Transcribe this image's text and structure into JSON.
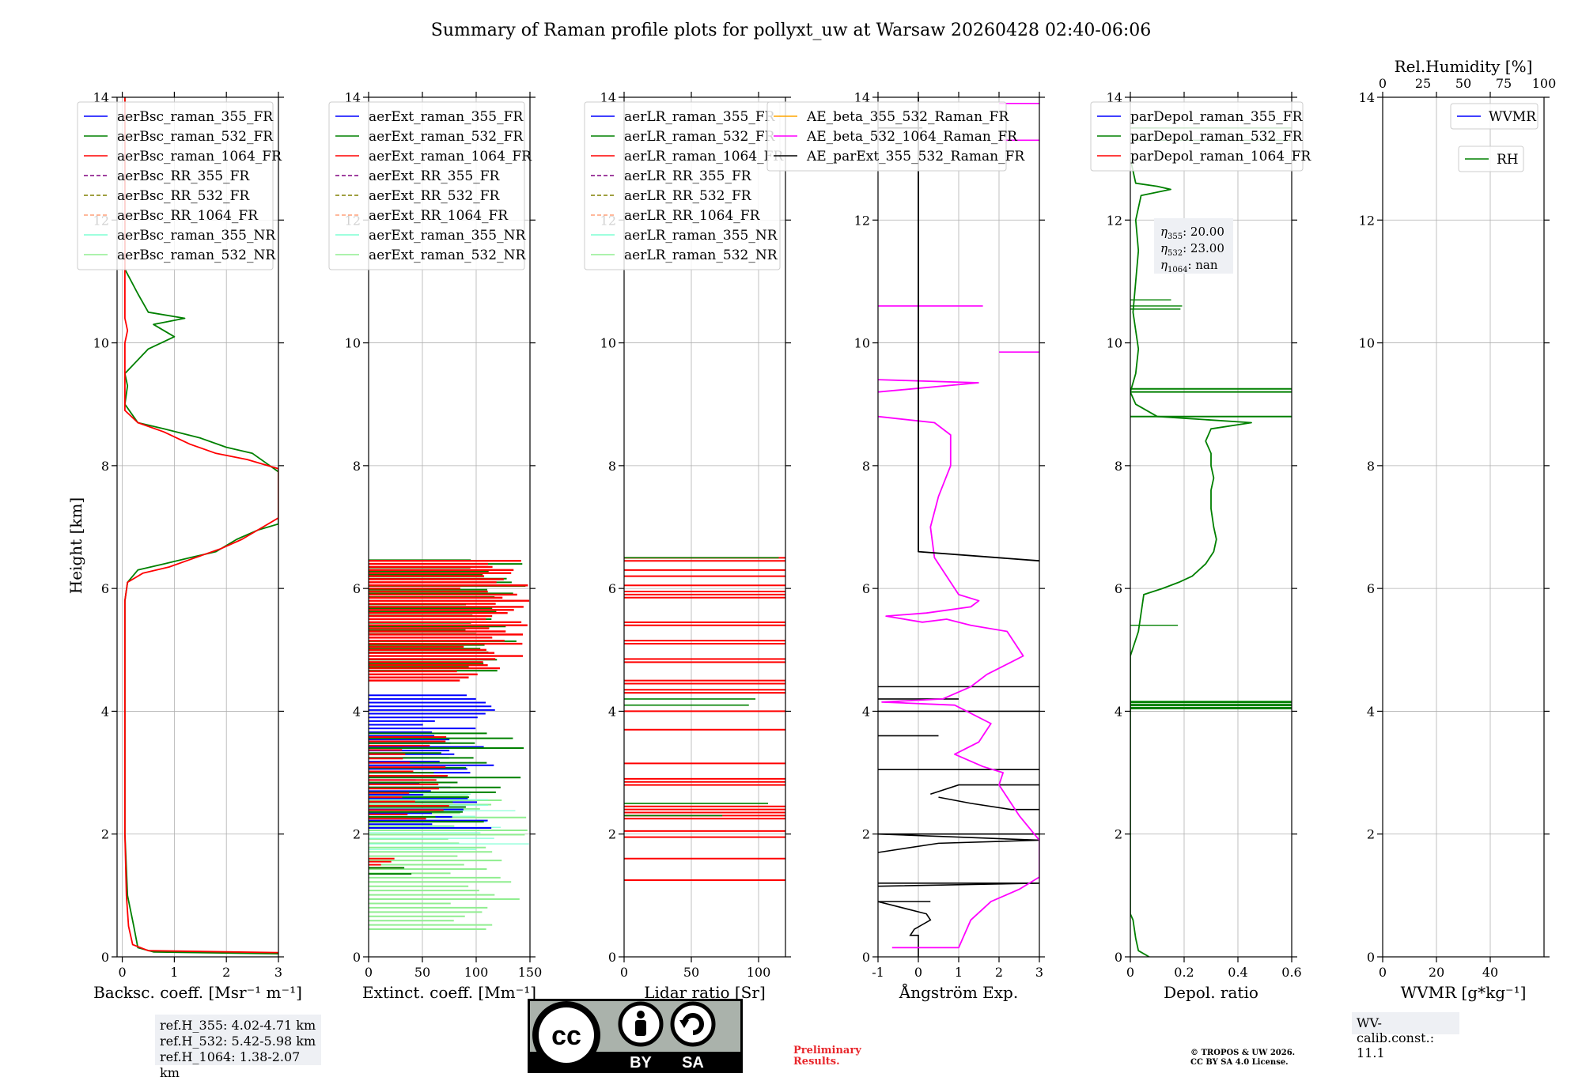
{
  "title": "Summary of Raman profile plots for pollyxt_uw at Warsaw 20260428 02:40-06:06",
  "y_axis_label": "Height [km]",
  "colors": {
    "blue": "#0000ff",
    "green": "#008000",
    "red": "#ff0000",
    "purple": "#800080",
    "olive": "#808000",
    "salmon": "#ffa07a",
    "cyan": "#7fffd4",
    "lightgreen": "#90ee90",
    "orange": "#ffa500",
    "magenta": "#ff00ff",
    "black": "#000000",
    "grid": "#b0b0b0"
  },
  "chart_data": [
    {
      "type": "line",
      "id": "backscatter",
      "xlabel": "Backsc. coeff. [Msr⁻¹ m⁻¹]",
      "xlim": [
        -0.1,
        3
      ],
      "ylim": [
        0,
        14
      ],
      "xticks": [
        0,
        1,
        2,
        3
      ],
      "yticks": [
        0,
        2,
        4,
        6,
        8,
        10,
        12,
        14
      ],
      "legend": [
        "aerBsc_raman_355_FR",
        "aerBsc_raman_532_FR",
        "aerBsc_raman_1064_FR",
        "aerBsc_RR_355_FR",
        "aerBsc_RR_532_FR",
        "aerBsc_RR_1064_FR",
        "aerBsc_raman_355_NR",
        "aerBsc_raman_532_NR"
      ],
      "legend_position": "top-right",
      "series": [
        {
          "name": "aerBsc_raman_532_FR",
          "color": "green",
          "points": [
            [
              3.0,
              0.05
            ],
            [
              0.6,
              0.08
            ],
            [
              0.3,
              0.15
            ],
            [
              0.22,
              0.5
            ],
            [
              0.1,
              1.0
            ],
            [
              0.05,
              2.0
            ],
            [
              0.05,
              3.5
            ],
            [
              0.05,
              5.0
            ],
            [
              0.05,
              5.8
            ],
            [
              0.1,
              6.1
            ],
            [
              0.3,
              6.3
            ],
            [
              0.8,
              6.4
            ],
            [
              1.3,
              6.5
            ],
            [
              1.8,
              6.6
            ],
            [
              2.2,
              6.8
            ],
            [
              2.6,
              6.95
            ],
            [
              3.0,
              7.05
            ],
            [
              3.0,
              7.9
            ],
            [
              2.5,
              8.2
            ],
            [
              2.0,
              8.3
            ],
            [
              1.5,
              8.45
            ],
            [
              0.8,
              8.6
            ],
            [
              0.3,
              8.7
            ],
            [
              0.05,
              9.0
            ],
            [
              0.1,
              9.3
            ],
            [
              0.05,
              9.5
            ],
            [
              0.5,
              9.9
            ],
            [
              1.0,
              10.1
            ],
            [
              0.6,
              10.3
            ],
            [
              1.2,
              10.4
            ],
            [
              0.5,
              10.5
            ],
            [
              0.3,
              10.8
            ],
            [
              0.05,
              11.2
            ],
            [
              0.05,
              14.0
            ]
          ]
        },
        {
          "name": "aerBsc_raman_1064_FR",
          "color": "red",
          "points": [
            [
              3.0,
              0.07
            ],
            [
              0.5,
              0.1
            ],
            [
              0.2,
              0.2
            ],
            [
              0.12,
              0.5
            ],
            [
              0.08,
              1.0
            ],
            [
              0.05,
              2.0
            ],
            [
              0.05,
              3.5
            ],
            [
              0.05,
              5.0
            ],
            [
              0.05,
              5.8
            ],
            [
              0.1,
              6.1
            ],
            [
              0.4,
              6.25
            ],
            [
              0.9,
              6.35
            ],
            [
              1.4,
              6.5
            ],
            [
              1.9,
              6.65
            ],
            [
              2.3,
              6.8
            ],
            [
              2.7,
              7.0
            ],
            [
              3.0,
              7.15
            ],
            [
              3.0,
              7.95
            ],
            [
              2.4,
              8.1
            ],
            [
              1.8,
              8.2
            ],
            [
              1.3,
              8.35
            ],
            [
              0.8,
              8.55
            ],
            [
              0.3,
              8.7
            ],
            [
              0.05,
              8.9
            ],
            [
              0.05,
              10.0
            ],
            [
              0.1,
              10.2
            ],
            [
              0.05,
              10.4
            ],
            [
              0.05,
              14.0
            ]
          ]
        }
      ]
    },
    {
      "type": "line",
      "id": "extinction",
      "xlabel": "Extinct. coeff. [Mm⁻¹]",
      "xlim": [
        0,
        150
      ],
      "ylim": [
        0,
        14
      ],
      "xticks": [
        0,
        50,
        100,
        150
      ],
      "yticks": [
        0,
        2,
        4,
        6,
        8,
        10,
        12,
        14
      ],
      "legend": [
        "aerExt_raman_355_FR",
        "aerExt_raman_532_FR",
        "aerExt_raman_1064_FR",
        "aerExt_RR_355_FR",
        "aerExt_RR_532_FR",
        "aerExt_RR_1064_FR",
        "aerExt_raman_355_NR",
        "aerExt_raman_532_NR"
      ],
      "legend_position": "top-right"
    },
    {
      "type": "line",
      "id": "lidar_ratio",
      "xlabel": "Lidar ratio [Sr]",
      "xlim": [
        0,
        120
      ],
      "ylim": [
        0,
        14
      ],
      "xticks": [
        0,
        50,
        100
      ],
      "yticks": [
        0,
        2,
        4,
        6,
        8,
        10,
        12,
        14
      ],
      "legend": [
        "aerLR_raman_355_FR",
        "aerLR_raman_532_FR",
        "aerLR_raman_1064_FR",
        "aerLR_RR_355_FR",
        "aerLR_RR_532_FR",
        "aerLR_RR_1064_FR",
        "aerLR_raman_355_NR",
        "aerLR_raman_532_NR"
      ],
      "legend_position": "top-right"
    },
    {
      "type": "line",
      "id": "angstrom",
      "xlabel": "Ångström Exp.",
      "xlim": [
        -1,
        3
      ],
      "ylim": [
        0,
        14
      ],
      "xticks": [
        -1,
        0,
        1,
        2,
        3
      ],
      "yticks": [
        0,
        2,
        4,
        6,
        8,
        10,
        12,
        14
      ],
      "legend": [
        "AE_beta_355_532_Raman_FR",
        "AE_beta_532_1064_Raman_FR",
        "AE_parExt_355_532_Raman_FR"
      ],
      "legend_position": "top",
      "series": [
        {
          "name": "AE_beta_532_1064_Raman_FR",
          "color": "magenta",
          "points": [
            [
              -0.65,
              0.15
            ],
            [
              1.0,
              0.15
            ],
            [
              1.1,
              0.3
            ],
            [
              1.3,
              0.6
            ],
            [
              1.8,
              0.9
            ],
            [
              2.5,
              1.1
            ],
            [
              3.0,
              1.3
            ],
            [
              3.0,
              1.9
            ],
            [
              2.5,
              2.3
            ],
            [
              2.0,
              2.8
            ],
            [
              2.1,
              3.0
            ],
            [
              1.6,
              3.1
            ],
            [
              0.9,
              3.3
            ],
            [
              1.5,
              3.5
            ],
            [
              1.8,
              3.8
            ],
            [
              1.2,
              4.0
            ],
            [
              0.9,
              4.1
            ],
            [
              -0.9,
              4.15
            ],
            [
              0.6,
              4.2
            ],
            [
              1.3,
              4.4
            ],
            [
              1.7,
              4.6
            ],
            [
              2.0,
              4.7
            ],
            [
              2.3,
              4.8
            ],
            [
              2.6,
              4.9
            ],
            [
              2.2,
              5.3
            ],
            [
              1.3,
              5.4
            ],
            [
              0.7,
              5.5
            ],
            [
              0.1,
              5.45
            ],
            [
              -0.8,
              5.55
            ],
            [
              0.2,
              5.6
            ],
            [
              1.3,
              5.7
            ],
            [
              1.5,
              5.8
            ],
            [
              1.0,
              5.9
            ],
            [
              0.9,
              6.0
            ],
            [
              0.8,
              6.1
            ],
            [
              0.4,
              6.5
            ],
            [
              0.3,
              7.0
            ],
            [
              0.5,
              7.5
            ],
            [
              0.8,
              8.0
            ],
            [
              0.8,
              8.5
            ],
            [
              0.4,
              8.7
            ],
            [
              -1.0,
              8.8
            ]
          ]
        },
        {
          "name": "AE_parExt_355_532_Raman_FR",
          "color": "black",
          "points": [
            [
              0.0,
              14.0
            ],
            [
              0.0,
              6.6
            ],
            [
              3.0,
              6.45
            ]
          ]
        }
      ]
    },
    {
      "type": "line",
      "id": "depolarization",
      "xlabel": "Depol. ratio",
      "xlim": [
        0,
        0.6
      ],
      "ylim": [
        0,
        14
      ],
      "xticks": [
        0.0,
        0.2,
        0.4,
        0.6
      ],
      "yticks": [
        0,
        2,
        4,
        6,
        8,
        10,
        12,
        14
      ],
      "legend": [
        "parDepol_raman_355_FR",
        "parDepol_raman_532_FR",
        "parDepol_raman_1064_FR"
      ],
      "legend_position": "top-right",
      "annotations": [
        {
          "label": "η355: 20.00",
          "sym": "η",
          "sub": "355",
          "value": "20.00"
        },
        {
          "label": "η532: 23.00",
          "sym": "η",
          "sub": "532",
          "value": "23.00"
        },
        {
          "label": "η1064: nan",
          "sym": "η",
          "sub": "1064",
          "value": "nan"
        }
      ],
      "series": [
        {
          "name": "parDepol_raman_532_FR",
          "color": "green",
          "points": [
            [
              0.07,
              0.0
            ],
            [
              0.03,
              0.1
            ],
            [
              0.02,
              0.3
            ],
            [
              0.01,
              0.6
            ],
            [
              0.0,
              0.7
            ],
            [
              0.0,
              4.9
            ],
            [
              0.03,
              5.3
            ],
            [
              0.04,
              5.6
            ],
            [
              0.05,
              5.9
            ],
            [
              0.12,
              6.0
            ],
            [
              0.18,
              6.1
            ],
            [
              0.23,
              6.2
            ],
            [
              0.28,
              6.4
            ],
            [
              0.31,
              6.6
            ],
            [
              0.32,
              6.8
            ],
            [
              0.31,
              7.0
            ],
            [
              0.3,
              7.3
            ],
            [
              0.3,
              7.6
            ],
            [
              0.31,
              7.8
            ],
            [
              0.3,
              8.0
            ],
            [
              0.3,
              8.2
            ],
            [
              0.28,
              8.4
            ],
            [
              0.3,
              8.6
            ],
            [
              0.45,
              8.7
            ],
            [
              0.1,
              8.8
            ],
            [
              0.02,
              9.0
            ],
            [
              0.0,
              9.2
            ],
            [
              0.02,
              9.5
            ],
            [
              0.03,
              9.9
            ],
            [
              0.01,
              10.5
            ],
            [
              0.02,
              11.0
            ],
            [
              0.03,
              11.5
            ],
            [
              0.02,
              12.0
            ],
            [
              0.04,
              12.4
            ],
            [
              0.15,
              12.5
            ],
            [
              0.1,
              12.55
            ],
            [
              0.02,
              12.6
            ],
            [
              0.0,
              13.0
            ]
          ]
        }
      ]
    },
    {
      "type": "line",
      "id": "wvmr_rh",
      "xlabel": "WVMR [g*kg⁻¹]",
      "xlim": [
        0,
        60
      ],
      "ylim": [
        0,
        14
      ],
      "xticks": [
        0,
        20,
        40
      ],
      "yticks": [
        0,
        2,
        4,
        6,
        8,
        10,
        12,
        14
      ],
      "top_axis_label": "Rel.Humidity [%]",
      "top_xlim": [
        0,
        100
      ],
      "top_xticks": [
        0,
        25,
        50,
        75,
        100
      ],
      "legend": [
        "WVMR",
        "RH"
      ],
      "legend_position": "top-right"
    }
  ],
  "ref_heights": [
    "ref.H_355: 4.02-4.71 km",
    "ref.H_532: 5.42-5.98 km",
    "ref.H_1064: 1.38-2.07 km"
  ],
  "wv_calib": "WV-calib.const.: 11.1",
  "license": {
    "cc": "cc",
    "by": "BY",
    "sa": "SA"
  },
  "preliminary": "Preliminary Results.",
  "copyright": [
    "© TROPOS & UW 2026.",
    "CC BY SA 4.0 License."
  ]
}
